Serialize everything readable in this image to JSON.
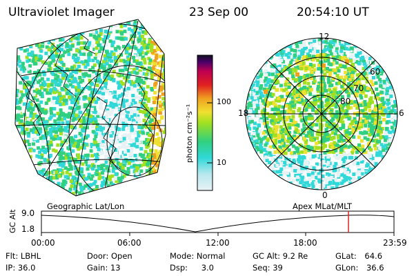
{
  "header": {
    "instrument": "Ultraviolet Imager",
    "date": "23 Sep 00",
    "time": "20:54:10 UT"
  },
  "colorbar": {
    "unit_label": "photon cm⁻²s⁻¹",
    "ticks": [
      "100",
      "10"
    ],
    "scale": "log",
    "colors": [
      "#e8f2f4",
      "#30d8d8",
      "#30d080",
      "#a0e020",
      "#f0e030",
      "#f0a020",
      "#e02020",
      "#c00050",
      "#4a006a",
      "#101020"
    ]
  },
  "panels": {
    "left_caption": "Geographic Lat/Lon",
    "right_caption": "Apex MLat/MLT",
    "polar_labels": {
      "top": "12",
      "left": "18",
      "right": "6",
      "bottom": "0",
      "lat60": "60",
      "lat70": "70",
      "lat80": "80"
    }
  },
  "altitude_plot": {
    "ylabel": "GC Alt",
    "y_ticks": [
      "9.0",
      "1.8"
    ],
    "x_ticks": [
      "00:00",
      "06:00",
      "12:00",
      "18:00",
      "23:59"
    ],
    "current_marker_color": "#e02020"
  },
  "footer": {
    "row1": [
      {
        "label": "Flt:",
        "value": "LBHL"
      },
      {
        "label": "Door:",
        "value": "Open"
      },
      {
        "label": "Mode:",
        "value": "Normal"
      },
      {
        "label": "GC Alt:",
        "value": "9.2 Re"
      },
      {
        "label": "GLat:",
        "value": "64.6"
      }
    ],
    "row2": [
      {
        "label": "IP:",
        "value": "36.0"
      },
      {
        "label": "Gain:",
        "value": "13"
      },
      {
        "label": "Dsp:",
        "value": "3.0"
      },
      {
        "label": "Seq:",
        "value": "39"
      },
      {
        "label": "GLon:",
        "value": "36.6"
      }
    ]
  }
}
